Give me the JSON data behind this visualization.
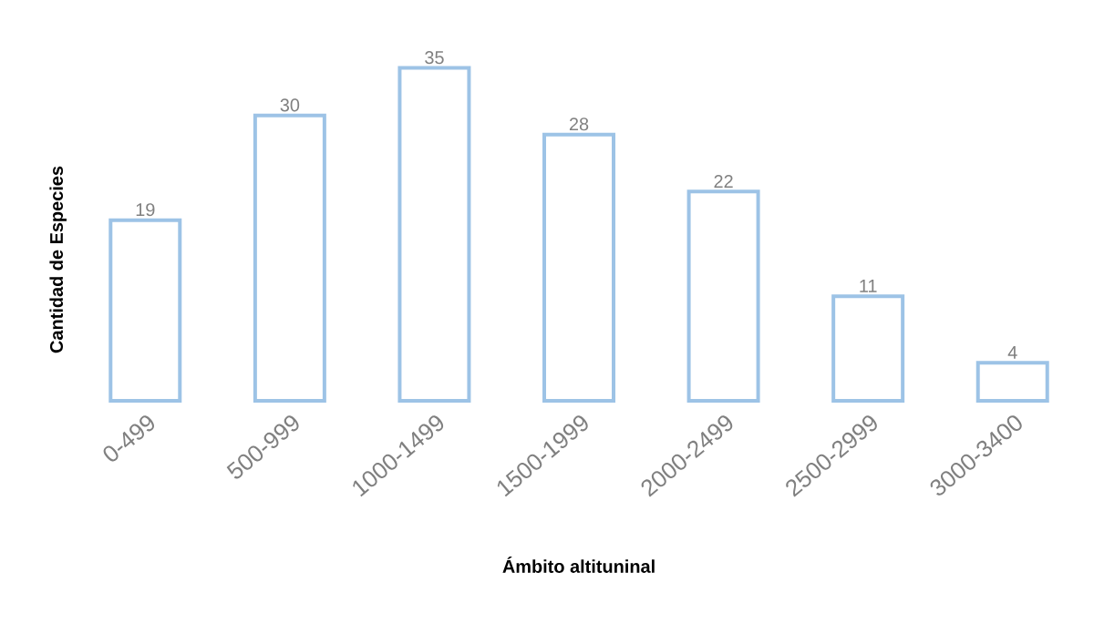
{
  "chart_data": {
    "type": "bar",
    "xlabel": "Ámbito altituninal",
    "ylabel": "Cantidad de Especies",
    "categories": [
      "0-499",
      "500-999",
      "1000-1499",
      "1500-1999",
      "2000-2499",
      "2500-2999",
      "3000-3400"
    ],
    "values": [
      19,
      30,
      35,
      28,
      22,
      11,
      4
    ],
    "color": "#9dc3e6",
    "data_labels": true
  }
}
